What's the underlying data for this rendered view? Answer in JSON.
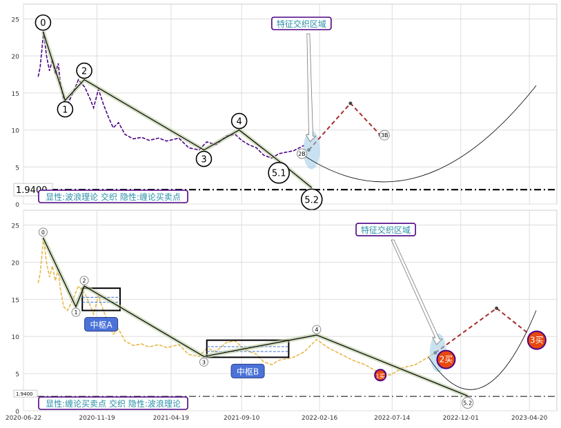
{
  "chart_data": [
    {
      "type": "line",
      "panel": "top",
      "ylim": [
        0,
        27
      ],
      "yticks": [
        "0",
        "5",
        "10",
        "15",
        "20",
        "25"
      ],
      "grid": true,
      "xlim": [
        "2020-06-22",
        "2023-06-15"
      ],
      "price_line": {
        "color": "#4b0082",
        "style": "dashed",
        "x": [
          "2020-07-22",
          "2020-07-26",
          "2020-08-02",
          "2020-08-08",
          "2020-08-14",
          "2020-08-20",
          "2020-08-26",
          "2020-09-01",
          "2020-09-05",
          "2020-09-12",
          "2020-09-20",
          "2020-10-01",
          "2020-10-12",
          "2020-10-25",
          "2020-11-05",
          "2020-11-12",
          "2020-11-22",
          "2020-12-02",
          "2020-12-12",
          "2020-12-22",
          "2021-01-02",
          "2021-01-15",
          "2021-02-01",
          "2021-02-18",
          "2021-03-05",
          "2021-03-25",
          "2021-04-10",
          "2021-05-05",
          "2021-05-25",
          "2021-06-15",
          "2021-07-01",
          "2021-07-20",
          "2021-08-10",
          "2021-08-28",
          "2021-09-10",
          "2021-09-25",
          "2021-10-10",
          "2021-10-25",
          "2021-11-10",
          "2021-11-25",
          "2021-12-10",
          "2021-12-25",
          "2022-01-15"
        ],
        "y": [
          17.2,
          18.5,
          23.2,
          20.0,
          18.0,
          19.5,
          17.5,
          19.0,
          16.5,
          14.0,
          13.5,
          15.0,
          16.8,
          15.8,
          14.2,
          13.0,
          15.5,
          13.5,
          11.8,
          10.3,
          11.0,
          9.4,
          8.8,
          9.0,
          8.6,
          8.9,
          8.5,
          8.9,
          7.6,
          7.3,
          8.4,
          8.0,
          9.2,
          9.4,
          8.6,
          8.0,
          7.6,
          6.6,
          6.2,
          6.8,
          7.0,
          7.2,
          7.9
        ]
      },
      "wave_points": [
        {
          "label": "0",
          "x": "2020-08-01",
          "y": 23.3
        },
        {
          "label": "1",
          "x": "2020-09-15",
          "y": 14.0
        },
        {
          "label": "2",
          "x": "2020-10-24",
          "y": 16.8
        },
        {
          "label": "3",
          "x": "2021-06-25",
          "y": 7.3
        },
        {
          "label": "4",
          "x": "2021-09-05",
          "y": 10.0
        },
        {
          "label": "5.1",
          "x": "2021-11-25",
          "y": 5.8
        },
        {
          "label": "5.2",
          "x": "2022-01-31",
          "y": 2.2
        }
      ],
      "forecast": [
        {
          "x": "2022-01-25",
          "y": 7.3
        },
        {
          "x": "2022-04-20",
          "y": 13.6
        },
        {
          "x": "2022-06-20",
          "y": 9.3
        }
      ],
      "forecast_labels": [
        {
          "label": "2B",
          "x": "2022-01-25",
          "y": 6.8
        },
        {
          "label": "3B",
          "x": "2022-06-20",
          "y": 9.3
        }
      ],
      "level_line": {
        "value": 1.94,
        "label": "1.9400"
      },
      "annotations": [
        {
          "text": "特征交织区域",
          "x": "2022-01-10",
          "y": 24.3
        },
        {
          "text": "显性:波浪理论 交织 隐性:缠论买卖点",
          "x": "2020-07-20",
          "y": 0.5
        }
      ]
    },
    {
      "type": "line",
      "panel": "bottom",
      "ylim": [
        0,
        27
      ],
      "yticks": [
        "0",
        "5",
        "10",
        "15",
        "20",
        "25"
      ],
      "grid": true,
      "xlim": [
        "2020-06-22",
        "2023-06-15"
      ],
      "xticks": [
        "2020-06-22",
        "2020-11-19",
        "2021-04-19",
        "2021-09-10",
        "2022-02-16",
        "2022-07-14",
        "2022-12-01",
        "2023-04-20"
      ],
      "price_line": {
        "color": "#e8b84a",
        "style": "dashed",
        "x": [
          "2020-07-22",
          "2020-07-26",
          "2020-08-02",
          "2020-08-08",
          "2020-08-14",
          "2020-08-20",
          "2020-08-26",
          "2020-09-01",
          "2020-09-05",
          "2020-09-12",
          "2020-09-20",
          "2020-10-01",
          "2020-10-12",
          "2020-10-25",
          "2020-11-05",
          "2020-11-12",
          "2020-11-22",
          "2020-12-02",
          "2020-12-12",
          "2020-12-22",
          "2021-01-02",
          "2021-01-15",
          "2021-02-01",
          "2021-02-18",
          "2021-03-05",
          "2021-03-25",
          "2021-04-10",
          "2021-05-05",
          "2021-05-25",
          "2021-06-15",
          "2021-07-01",
          "2021-07-20",
          "2021-08-10",
          "2021-08-28",
          "2021-09-10",
          "2021-09-25",
          "2021-10-10",
          "2021-10-25",
          "2021-11-10",
          "2021-11-25",
          "2021-12-10",
          "2021-12-25",
          "2022-01-15",
          "2022-02-10",
          "2022-03-05",
          "2022-04-01",
          "2022-04-25",
          "2022-05-20",
          "2022-06-15",
          "2022-07-10",
          "2022-08-05",
          "2022-08-30",
          "2022-09-20",
          "2022-10-10"
        ],
        "y": [
          17.2,
          18.5,
          23.2,
          20.0,
          18.0,
          19.5,
          17.5,
          19.0,
          16.5,
          14.0,
          13.5,
          15.0,
          16.8,
          15.8,
          14.2,
          13.0,
          15.5,
          13.5,
          11.8,
          10.3,
          11.0,
          9.4,
          8.8,
          9.0,
          8.6,
          8.9,
          8.5,
          8.9,
          7.6,
          7.3,
          8.4,
          8.0,
          9.2,
          9.4,
          8.6,
          8.0,
          7.6,
          6.6,
          6.2,
          6.8,
          7.0,
          7.2,
          7.9,
          9.6,
          8.5,
          7.6,
          6.8,
          6.2,
          5.2,
          4.8,
          5.8,
          6.2,
          7.0,
          7.8
        ]
      },
      "pivots": [
        {
          "label": "中枢A",
          "x0": "2020-10-20",
          "x1": "2021-01-05",
          "y0": 13.5,
          "y1": 16.5
        },
        {
          "label": "中枢B",
          "x0": "2021-07-01",
          "x1": "2021-12-15",
          "y0": 7.2,
          "y1": 9.5
        }
      ],
      "wave_points": [
        {
          "label": "0",
          "x": "2020-08-01",
          "y": 23.3
        },
        {
          "label": "1",
          "x": "2020-10-07",
          "y": 14.0
        },
        {
          "label": "2",
          "x": "2020-10-24",
          "y": 16.8
        },
        {
          "label": "3",
          "x": "2021-06-25",
          "y": 7.3
        },
        {
          "label": "4",
          "x": "2022-02-10",
          "y": 10.2
        },
        {
          "label": "5.2",
          "x": "2022-12-15",
          "y": 2.0
        }
      ],
      "buy_points": [
        {
          "label": "1买",
          "x": "2022-06-20",
          "y": 4.8
        },
        {
          "label": "2买",
          "x": "2022-11-01",
          "y": 6.9
        },
        {
          "label": "3买",
          "x": "2023-05-05",
          "y": 9.5
        }
      ],
      "forecast": [
        {
          "x": "2022-10-10",
          "y": 7.8
        },
        {
          "x": "2023-02-12",
          "y": 13.8
        },
        {
          "x": "2023-05-05",
          "y": 9.5
        }
      ],
      "level_line": {
        "value": 1.94,
        "label": "1.9400"
      },
      "annotations": [
        {
          "text": "特征交织区域",
          "x": "2022-07-01",
          "y": 24.3
        },
        {
          "text": "显性:缠论买卖点 交织 隐性:波浪理论",
          "x": "2020-07-20",
          "y": 0.5
        }
      ]
    }
  ]
}
